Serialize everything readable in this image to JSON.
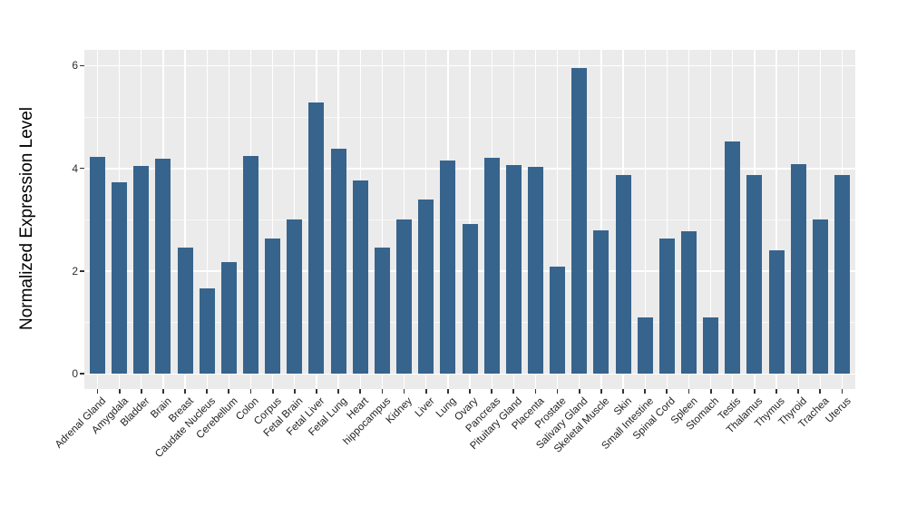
{
  "chart_data": {
    "type": "bar",
    "title": "",
    "xlabel": "",
    "ylabel": "Normalized Expression Level",
    "ylim": [
      0,
      6.3
    ],
    "yticks": [
      0,
      2,
      4,
      6
    ],
    "yticks_minor": [
      1,
      3,
      5
    ],
    "grid": true,
    "legend": false,
    "categories": [
      "Adrenal Gland",
      "Amygdala",
      "Bladder",
      "Brain",
      "Breast",
      "Caudate Nucleus",
      "Cerebellum",
      "Colon",
      "Corpus",
      "Fetal Brain",
      "Fetal Liver",
      "Fetal Lung",
      "Heart",
      "hippocampus",
      "Kidney",
      "Liver",
      "Lung",
      "Ovary",
      "Pancreas",
      "Pituitary Gland",
      "Placenta",
      "Prostate",
      "Salivary Gland",
      "Skeletal Muscle",
      "Skin",
      "Small Intestine",
      "Spinal Cord",
      "Spleen",
      "Stomach",
      "Testis",
      "Thalamus",
      "Thymus",
      "Thyroid",
      "Trachea",
      "Uterus"
    ],
    "values": [
      4.22,
      3.72,
      4.05,
      4.18,
      2.45,
      1.66,
      2.18,
      4.24,
      2.63,
      3.0,
      5.28,
      4.38,
      3.76,
      2.45,
      3.0,
      3.4,
      4.16,
      2.92,
      4.21,
      4.06,
      4.02,
      2.08,
      5.96,
      2.8,
      3.87,
      1.1,
      2.63,
      2.78,
      1.1,
      4.52,
      3.87,
      2.4,
      4.09,
      3.0,
      3.87
    ],
    "colors": {
      "bar": "#37648C",
      "panel_background": "#EBEBEB",
      "gridline": "#FFFFFF",
      "tick_mark": "#333333",
      "tick_text": "#2E2E2E",
      "axis_title_text": "#000000",
      "figure_background": "#FFFFFF"
    }
  }
}
